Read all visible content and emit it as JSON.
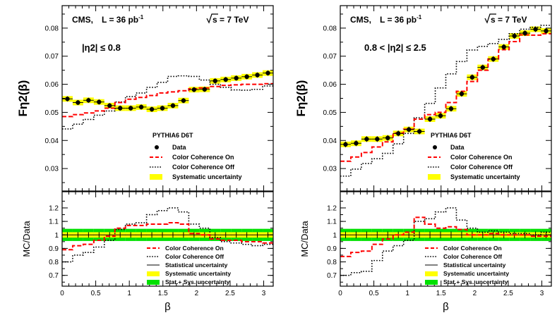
{
  "chart_data": [
    {
      "type": "line",
      "title": "CMS,  L = 36 pb-1   √s = 7 TeV",
      "experiment": "CMS,",
      "lumi_label": "L = 36 pb",
      "lumi_exp": "-1",
      "energy_label": "s = 7 TeV",
      "region_label": "|η2| ≤ 0.8",
      "ylabel": "Fη2(β)",
      "xlabel": "β",
      "xlim": [
        0,
        3.14159
      ],
      "ylim": [
        0.022,
        0.088
      ],
      "yticks": [
        "0.03",
        "0.04",
        "0.05",
        "0.06",
        "0.07",
        "0.08"
      ],
      "legend_title": "PYTHIA6 D6T",
      "legend": [
        "Data",
        "Color Coherence On",
        "Color Coherence Off",
        "Systematic uncertainty"
      ],
      "bins": 20,
      "series": [
        {
          "name": "Data",
          "values": [
            0.0548,
            0.0535,
            0.0543,
            0.0537,
            0.0524,
            0.0515,
            0.0515,
            0.0519,
            0.0511,
            0.0515,
            0.0524,
            0.0542,
            0.0581,
            0.0582,
            0.0612,
            0.0617,
            0.0622,
            0.0627,
            0.0633,
            0.064
          ]
        },
        {
          "name": "Data stat. error",
          "values": [
            0.0009,
            0.0009,
            0.0009,
            0.0009,
            0.0009,
            0.0009,
            0.0009,
            0.0009,
            0.0009,
            0.0009,
            0.0009,
            0.0009,
            0.0009,
            0.0009,
            0.0009,
            0.0009,
            0.0009,
            0.0009,
            0.0009,
            0.0009
          ]
        },
        {
          "name": "Systematic uncertainty",
          "values": [
            0.001,
            0.001,
            0.001,
            0.001,
            0.001,
            0.001,
            0.001,
            0.001,
            0.001,
            0.001,
            0.001,
            0.001,
            0.001,
            0.001,
            0.001,
            0.001,
            0.001,
            0.001,
            0.001,
            0.001
          ]
        },
        {
          "name": "Color Coherence On",
          "values": [
            0.0485,
            0.0492,
            0.0498,
            0.0505,
            0.0515,
            0.0535,
            0.0547,
            0.0553,
            0.056,
            0.0569,
            0.0573,
            0.0577,
            0.0584,
            0.0587,
            0.0592,
            0.0596,
            0.0598,
            0.06,
            0.06,
            0.0602
          ]
        },
        {
          "name": "Color Coherence Off",
          "values": [
            0.0441,
            0.0458,
            0.0475,
            0.049,
            0.0505,
            0.0537,
            0.0556,
            0.0569,
            0.0589,
            0.0607,
            0.0628,
            0.063,
            0.0628,
            0.0615,
            0.06,
            0.0589,
            0.058,
            0.0579,
            0.0582,
            0.0594
          ]
        }
      ],
      "ratio_panel": {
        "ylabel": "MC/Data",
        "ylim": [
          0.62,
          1.32
        ],
        "yticks": [
          "0.7",
          "0.8",
          "0.9",
          "1",
          "1.1",
          "1.2"
        ],
        "xticks": [
          "0",
          "0.5",
          "1",
          "1.5",
          "2",
          "2.5",
          "3"
        ],
        "legend": [
          "Color Coherence On",
          "Color Coherence Off",
          "Statistical uncertainty",
          "Systematic uncertainty",
          "Stat.+ Sys. uncertainty"
        ],
        "series": [
          {
            "name": "Color Coherence On",
            "values": [
              0.89,
              0.92,
              0.93,
              0.96,
              0.99,
              1.05,
              1.07,
              1.07,
              1.08,
              1.08,
              1.09,
              1.08,
              1.01,
              1.0,
              0.97,
              0.96,
              0.96,
              0.95,
              0.95,
              0.94
            ]
          },
          {
            "name": "Color Coherence Off",
            "values": [
              0.8,
              0.85,
              0.87,
              0.91,
              0.96,
              1.04,
              1.08,
              1.09,
              1.15,
              1.18,
              1.2,
              1.17,
              1.08,
              1.05,
              0.98,
              0.95,
              0.94,
              0.93,
              0.92,
              0.93
            ]
          },
          {
            "name": "Statistical uncertainty",
            "values": [
              0.02,
              0.02,
              0.02,
              0.02,
              0.02,
              0.02,
              0.02,
              0.02,
              0.02,
              0.02,
              0.02,
              0.02,
              0.02,
              0.02,
              0.02,
              0.02,
              0.02,
              0.02,
              0.02,
              0.02
            ]
          },
          {
            "name": "Systematic uncertainty",
            "values": [
              0.02,
              0.02,
              0.02,
              0.02,
              0.02,
              0.02,
              0.02,
              0.02,
              0.02,
              0.02,
              0.02,
              0.02,
              0.02,
              0.02,
              0.02,
              0.02,
              0.02,
              0.02,
              0.02,
              0.02
            ]
          },
          {
            "name": "Stat.+ Sys. uncertainty",
            "values": [
              0.045,
              0.045,
              0.045,
              0.045,
              0.045,
              0.045,
              0.045,
              0.045,
              0.045,
              0.045,
              0.045,
              0.045,
              0.045,
              0.045,
              0.045,
              0.045,
              0.045,
              0.045,
              0.045,
              0.045
            ]
          }
        ]
      }
    },
    {
      "type": "line",
      "title": "CMS,  L = 36 pb-1   √s = 7 TeV",
      "experiment": "CMS,",
      "lumi_label": "L = 36 pb",
      "lumi_exp": "-1",
      "energy_label": "s = 7 TeV",
      "region_label": "0.8 < |η2| ≤ 2.5",
      "ylabel": "Fη2(β)",
      "xlabel": "β",
      "xlim": [
        0,
        3.14159
      ],
      "ylim": [
        0.022,
        0.088
      ],
      "yticks": [
        "0.03",
        "0.04",
        "0.05",
        "0.06",
        "0.07",
        "0.08"
      ],
      "legend_title": "PYTHIA6 D6T",
      "legend": [
        "Data",
        "Color Coherence On",
        "Color Coherence Off",
        "Systematic uncertainty"
      ],
      "bins": 20,
      "series": [
        {
          "name": "Data",
          "values": [
            0.0386,
            0.039,
            0.0405,
            0.0405,
            0.0409,
            0.0425,
            0.0439,
            0.0432,
            0.0476,
            0.0488,
            0.0513,
            0.0566,
            0.0625,
            0.066,
            0.069,
            0.0733,
            0.0772,
            0.0782,
            0.0796,
            0.079
          ]
        },
        {
          "name": "Data stat. error",
          "values": [
            0.001,
            0.001,
            0.001,
            0.001,
            0.001,
            0.001,
            0.001,
            0.001,
            0.001,
            0.001,
            0.001,
            0.001,
            0.001,
            0.001,
            0.001,
            0.001,
            0.001,
            0.001,
            0.001,
            0.001
          ]
        },
        {
          "name": "Systematic uncertainty",
          "values": [
            0.001,
            0.001,
            0.001,
            0.001,
            0.001,
            0.001,
            0.001,
            0.001,
            0.001,
            0.001,
            0.001,
            0.001,
            0.001,
            0.001,
            0.001,
            0.001,
            0.001,
            0.001,
            0.001,
            0.001
          ]
        },
        {
          "name": "Color Coherence On",
          "values": [
            0.0326,
            0.0341,
            0.0357,
            0.0377,
            0.0395,
            0.0426,
            0.044,
            0.0476,
            0.0492,
            0.05,
            0.0535,
            0.0575,
            0.061,
            0.065,
            0.069,
            0.0723,
            0.0752,
            0.0776,
            0.0775,
            0.078
          ]
        },
        {
          "name": "Color Coherence Off",
          "values": [
            0.0273,
            0.0298,
            0.0318,
            0.0335,
            0.0354,
            0.0388,
            0.0425,
            0.0481,
            0.0532,
            0.0587,
            0.0637,
            0.0681,
            0.0722,
            0.0735,
            0.0745,
            0.076,
            0.078,
            0.0796,
            0.0803,
            0.081
          ]
        }
      ],
      "ratio_panel": {
        "ylabel": "MC/Data",
        "ylim": [
          0.62,
          1.32
        ],
        "yticks": [
          "0.7",
          "0.8",
          "0.9",
          "1",
          "1.1",
          "1.2"
        ],
        "xticks": [
          "0",
          "0.5",
          "1",
          "1.5",
          "2",
          "2.5",
          "3"
        ],
        "legend": [
          "Color Coherence On",
          "Color Coherence Off",
          "Statistical uncertainty",
          "Systematic uncertainty",
          "Stat.+ Sys. uncertainty"
        ],
        "series": [
          {
            "name": "Color Coherence On",
            "values": [
              0.84,
              0.87,
              0.88,
              0.93,
              0.97,
              1.0,
              1.02,
              1.13,
              1.08,
              1.05,
              1.06,
              1.04,
              1.0,
              1.0,
              1.01,
              1.0,
              1.0,
              1.0,
              0.99,
              0.99
            ]
          },
          {
            "name": "Color Coherence Off",
            "values": [
              0.7,
              0.72,
              0.73,
              0.81,
              0.88,
              0.92,
              0.96,
              1.1,
              1.12,
              1.17,
              1.2,
              1.11,
              1.05,
              1.02,
              1.03,
              1.02,
              1.01,
              1.01,
              1.0,
              1.02
            ]
          },
          {
            "name": "Statistical uncertainty",
            "values": [
              0.025,
              0.025,
              0.025,
              0.025,
              0.025,
              0.025,
              0.025,
              0.025,
              0.025,
              0.025,
              0.025,
              0.025,
              0.025,
              0.025,
              0.025,
              0.025,
              0.025,
              0.025,
              0.025,
              0.025
            ]
          },
          {
            "name": "Systematic uncertainty",
            "values": [
              0.02,
              0.02,
              0.02,
              0.02,
              0.02,
              0.02,
              0.02,
              0.02,
              0.02,
              0.02,
              0.02,
              0.02,
              0.02,
              0.02,
              0.02,
              0.02,
              0.02,
              0.02,
              0.02,
              0.02
            ]
          },
          {
            "name": "Stat.+ Sys. uncertainty",
            "values": [
              0.045,
              0.045,
              0.045,
              0.045,
              0.045,
              0.045,
              0.045,
              0.045,
              0.045,
              0.045,
              0.045,
              0.045,
              0.045,
              0.045,
              0.045,
              0.045,
              0.045,
              0.045,
              0.045,
              0.045
            ]
          }
        ]
      }
    }
  ],
  "colors": {
    "data": "#000000",
    "color_on": "#ff0000",
    "color_off": "#000000",
    "systematic": "#ffff00",
    "stat_sys": "#00e000",
    "statistical": "#000000",
    "frame": "#000000",
    "background": "#ffffff"
  }
}
